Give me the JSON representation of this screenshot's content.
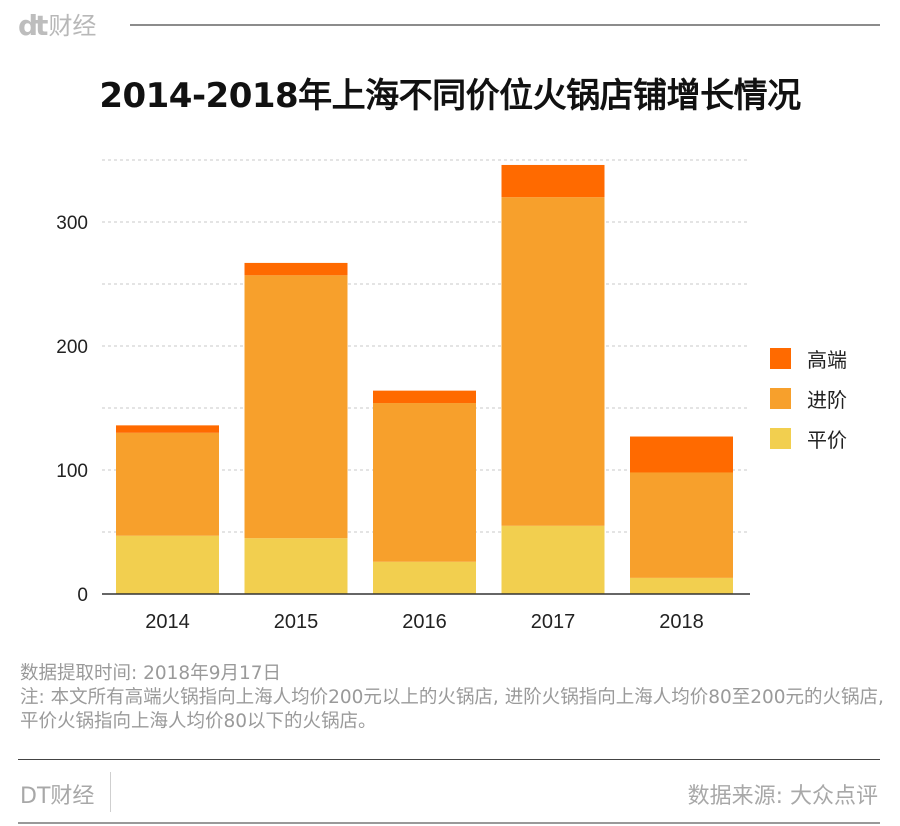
{
  "brand": {
    "logo_mark": "dt",
    "name": "财经"
  },
  "title": "2014-2018年上海不同价位火锅店铺增长情况",
  "chart_data": {
    "type": "bar",
    "stacked": true,
    "title": "2014-2018年上海不同价位火锅店铺增长情况",
    "xlabel": "",
    "ylabel": "",
    "categories": [
      "2014",
      "2015",
      "2016",
      "2017",
      "2018"
    ],
    "series": [
      {
        "name": "平价",
        "color": "#f2cf4f",
        "values": [
          47,
          45,
          26,
          55,
          13
        ]
      },
      {
        "name": "进阶",
        "color": "#f7a02c",
        "values": [
          83,
          212,
          128,
          265,
          85
        ]
      },
      {
        "name": "高端",
        "color": "#ff6a00",
        "values": [
          6,
          10,
          10,
          26,
          29
        ]
      }
    ],
    "ylim": [
      0,
      350
    ],
    "yticks": [
      0,
      100,
      200,
      300
    ],
    "gridlines": [
      50,
      100,
      150,
      200,
      250,
      300,
      350
    ],
    "grid": true,
    "legend_position": "right",
    "legend_order": [
      "高端",
      "进阶",
      "平价"
    ]
  },
  "notes": {
    "date_line": "数据提取时间: 2018年9月17日",
    "note_line": "注: 本文所有高端火锅指向上海人均价200元以上的火锅店, 进阶火锅指向上海人均价80至200元的火锅店, 平价火锅指向上海人均价80以下的火锅店。"
  },
  "footer": {
    "left": "DT财经",
    "right": "数据来源: 大众点评"
  }
}
